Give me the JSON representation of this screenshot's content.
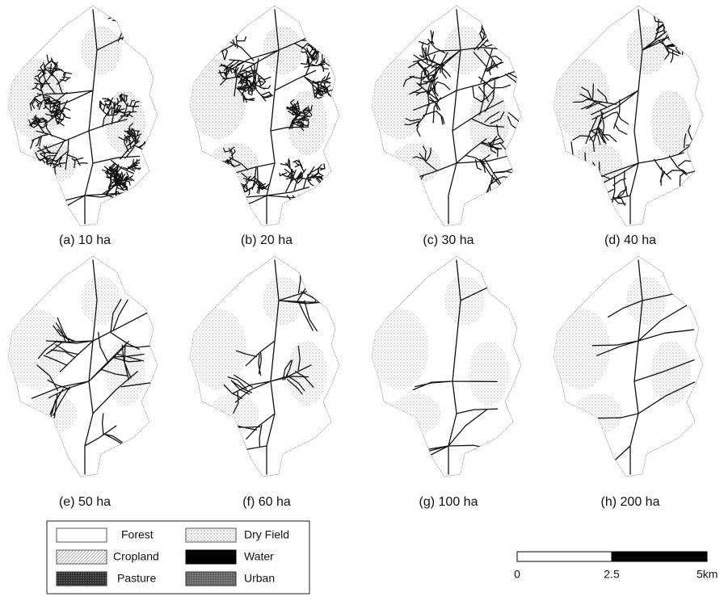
{
  "panels": [
    {
      "label": "(a) 10 ha"
    },
    {
      "label": "(b) 20 ha"
    },
    {
      "label": "(c) 30 ha"
    },
    {
      "label": "(d) 40 ha"
    },
    {
      "label": "(e) 50 ha"
    },
    {
      "label": "(f) 60 ha"
    },
    {
      "label": "(g) 100 ha"
    },
    {
      "label": "(h) 200 ha"
    }
  ],
  "legend": [
    {
      "label": "Forest"
    },
    {
      "label": "Dry Field"
    },
    {
      "label": "Cropland"
    },
    {
      "label": "Water"
    },
    {
      "label": "Pasture"
    },
    {
      "label": "Urban"
    }
  ],
  "scale_bar": {
    "labels": [
      "0",
      "2.5",
      "5km"
    ]
  }
}
